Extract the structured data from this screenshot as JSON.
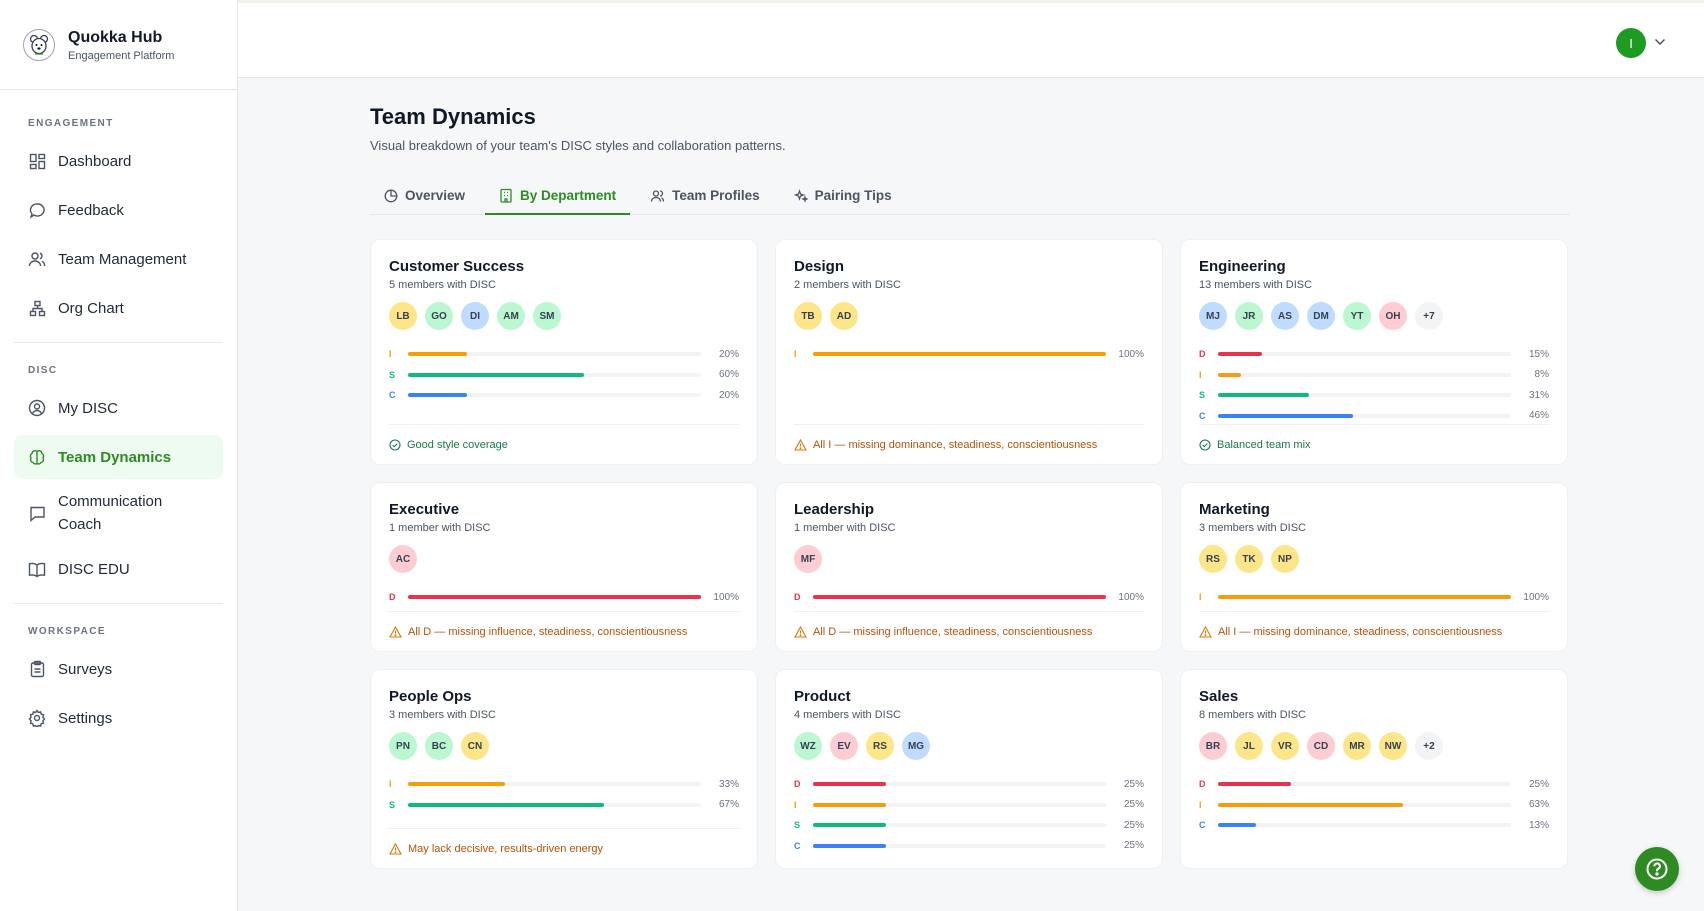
{
  "brand": {
    "name": "Quokka Hub",
    "subtitle": "Engagement Platform",
    "logo_icon": "quokka-logo-icon"
  },
  "sidebar": {
    "sections": [
      {
        "label": "ENGAGEMENT",
        "items": [
          {
            "label": "Dashboard",
            "icon": "dashboard-icon"
          },
          {
            "label": "Feedback",
            "icon": "chat-bubble-icon"
          },
          {
            "label": "Team Management",
            "icon": "users-icon"
          },
          {
            "label": "Org Chart",
            "icon": "org-chart-icon"
          }
        ]
      },
      {
        "label": "DISC",
        "items": [
          {
            "label": "My DISC",
            "icon": "user-circle-icon"
          },
          {
            "label": "Team Dynamics",
            "icon": "brain-icon",
            "active": true
          },
          {
            "label": "Communication Coach",
            "icon": "message-square-icon"
          },
          {
            "label": "DISC EDU",
            "icon": "book-icon"
          }
        ]
      },
      {
        "label": "WORKSPACE",
        "items": [
          {
            "label": "Surveys",
            "icon": "clipboard-icon"
          },
          {
            "label": "Settings",
            "icon": "gear-icon"
          }
        ]
      }
    ]
  },
  "header": {
    "user_initial": "I"
  },
  "page": {
    "title": "Team Dynamics",
    "subtitle": "Visual breakdown of your team's DISC styles and collaboration patterns."
  },
  "tabs": [
    {
      "label": "Overview",
      "icon": "pie-chart-icon"
    },
    {
      "label": "By Department",
      "icon": "building-icon",
      "active": true
    },
    {
      "label": "Team Profiles",
      "icon": "users-icon"
    },
    {
      "label": "Pairing Tips",
      "icon": "sparkles-icon"
    }
  ],
  "colors": {
    "D": "#e8334f",
    "I": "#f59e0b",
    "S": "#10b981",
    "C": "#3b82f6",
    "accent": "#2e8b23",
    "avatar": {
      "yellow": "#fde68a",
      "green": "#bbf7d0",
      "blue": "#bfdbfe",
      "pink": "#fecdd3",
      "gray": "#f3f4f6"
    }
  },
  "departments": [
    {
      "name": "Customer Success",
      "members": "5 members with DISC",
      "avatars": [
        [
          "LB",
          "yellow"
        ],
        [
          "GO",
          "green"
        ],
        [
          "DI",
          "blue"
        ],
        [
          "AM",
          "green"
        ],
        [
          "SM",
          "green"
        ]
      ],
      "bars": [
        {
          "k": "I",
          "pct": 20,
          "label": "20%"
        },
        {
          "k": "S",
          "pct": 60,
          "label": "60%"
        },
        {
          "k": "C",
          "pct": 20,
          "label": "20%"
        }
      ],
      "footer": {
        "type": "ok",
        "text": "Good style coverage"
      }
    },
    {
      "name": "Design",
      "members": "2 members with DISC",
      "avatars": [
        [
          "TB",
          "yellow"
        ],
        [
          "AD",
          "yellow"
        ]
      ],
      "bars": [
        {
          "k": "I",
          "pct": 100,
          "label": "100%"
        }
      ],
      "footer": {
        "type": "warn",
        "text": "All I — missing dominance, steadiness, conscientiousness"
      }
    },
    {
      "name": "Engineering",
      "members": "13 members with DISC",
      "avatars": [
        [
          "MJ",
          "blue"
        ],
        [
          "JR",
          "green"
        ],
        [
          "AS",
          "blue"
        ],
        [
          "DM",
          "blue"
        ],
        [
          "YT",
          "green"
        ],
        [
          "OH",
          "pink"
        ],
        [
          "+7",
          "gray"
        ]
      ],
      "bars": [
        {
          "k": "D",
          "pct": 15,
          "label": "15%"
        },
        {
          "k": "I",
          "pct": 8,
          "label": "8%"
        },
        {
          "k": "S",
          "pct": 31,
          "label": "31%"
        },
        {
          "k": "C",
          "pct": 46,
          "label": "46%"
        }
      ],
      "footer": {
        "type": "ok",
        "text": "Balanced team mix"
      }
    },
    {
      "name": "Executive",
      "members": "1 member with DISC",
      "avatars": [
        [
          "AC",
          "pink"
        ]
      ],
      "bars": [
        {
          "k": "D",
          "pct": 100,
          "label": "100%"
        }
      ],
      "footer": {
        "type": "warn",
        "text": "All D — missing influence, steadiness, conscientiousness"
      }
    },
    {
      "name": "Leadership",
      "members": "1 member with DISC",
      "avatars": [
        [
          "MF",
          "pink"
        ]
      ],
      "bars": [
        {
          "k": "D",
          "pct": 100,
          "label": "100%"
        }
      ],
      "footer": {
        "type": "warn",
        "text": "All D — missing influence, steadiness, conscientiousness"
      }
    },
    {
      "name": "Marketing",
      "members": "3 members with DISC",
      "avatars": [
        [
          "RS",
          "yellow"
        ],
        [
          "TK",
          "yellow"
        ],
        [
          "NP",
          "yellow"
        ]
      ],
      "bars": [
        {
          "k": "I",
          "pct": 100,
          "label": "100%"
        }
      ],
      "footer": {
        "type": "warn",
        "text": "All I — missing dominance, steadiness, conscientiousness"
      }
    },
    {
      "name": "People Ops",
      "members": "3 members with DISC",
      "avatars": [
        [
          "PN",
          "green"
        ],
        [
          "BC",
          "green"
        ],
        [
          "CN",
          "yellow"
        ]
      ],
      "bars": [
        {
          "k": "I",
          "pct": 33,
          "label": "33%"
        },
        {
          "k": "S",
          "pct": 67,
          "label": "67%"
        }
      ],
      "footer": {
        "type": "warn",
        "text": "May lack decisive, results-driven energy"
      }
    },
    {
      "name": "Product",
      "members": "4 members with DISC",
      "avatars": [
        [
          "WZ",
          "green"
        ],
        [
          "EV",
          "pink"
        ],
        [
          "RS",
          "yellow"
        ],
        [
          "MG",
          "blue"
        ]
      ],
      "bars": [
        {
          "k": "D",
          "pct": 25,
          "label": "25%"
        },
        {
          "k": "I",
          "pct": 25,
          "label": "25%"
        },
        {
          "k": "S",
          "pct": 25,
          "label": "25%"
        },
        {
          "k": "C",
          "pct": 25,
          "label": "25%"
        }
      ],
      "footer": null
    },
    {
      "name": "Sales",
      "members": "8 members with DISC",
      "avatars": [
        [
          "BR",
          "pink"
        ],
        [
          "JL",
          "yellow"
        ],
        [
          "VR",
          "yellow"
        ],
        [
          "CD",
          "pink"
        ],
        [
          "MR",
          "yellow"
        ],
        [
          "NW",
          "yellow"
        ],
        [
          "+2",
          "gray"
        ]
      ],
      "bars": [
        {
          "k": "D",
          "pct": 25,
          "label": "25%"
        },
        {
          "k": "I",
          "pct": 63,
          "label": "63%"
        },
        {
          "k": "C",
          "pct": 13,
          "label": "13%"
        }
      ],
      "footer": null
    }
  ],
  "help": {
    "icon": "help-circle-icon"
  }
}
